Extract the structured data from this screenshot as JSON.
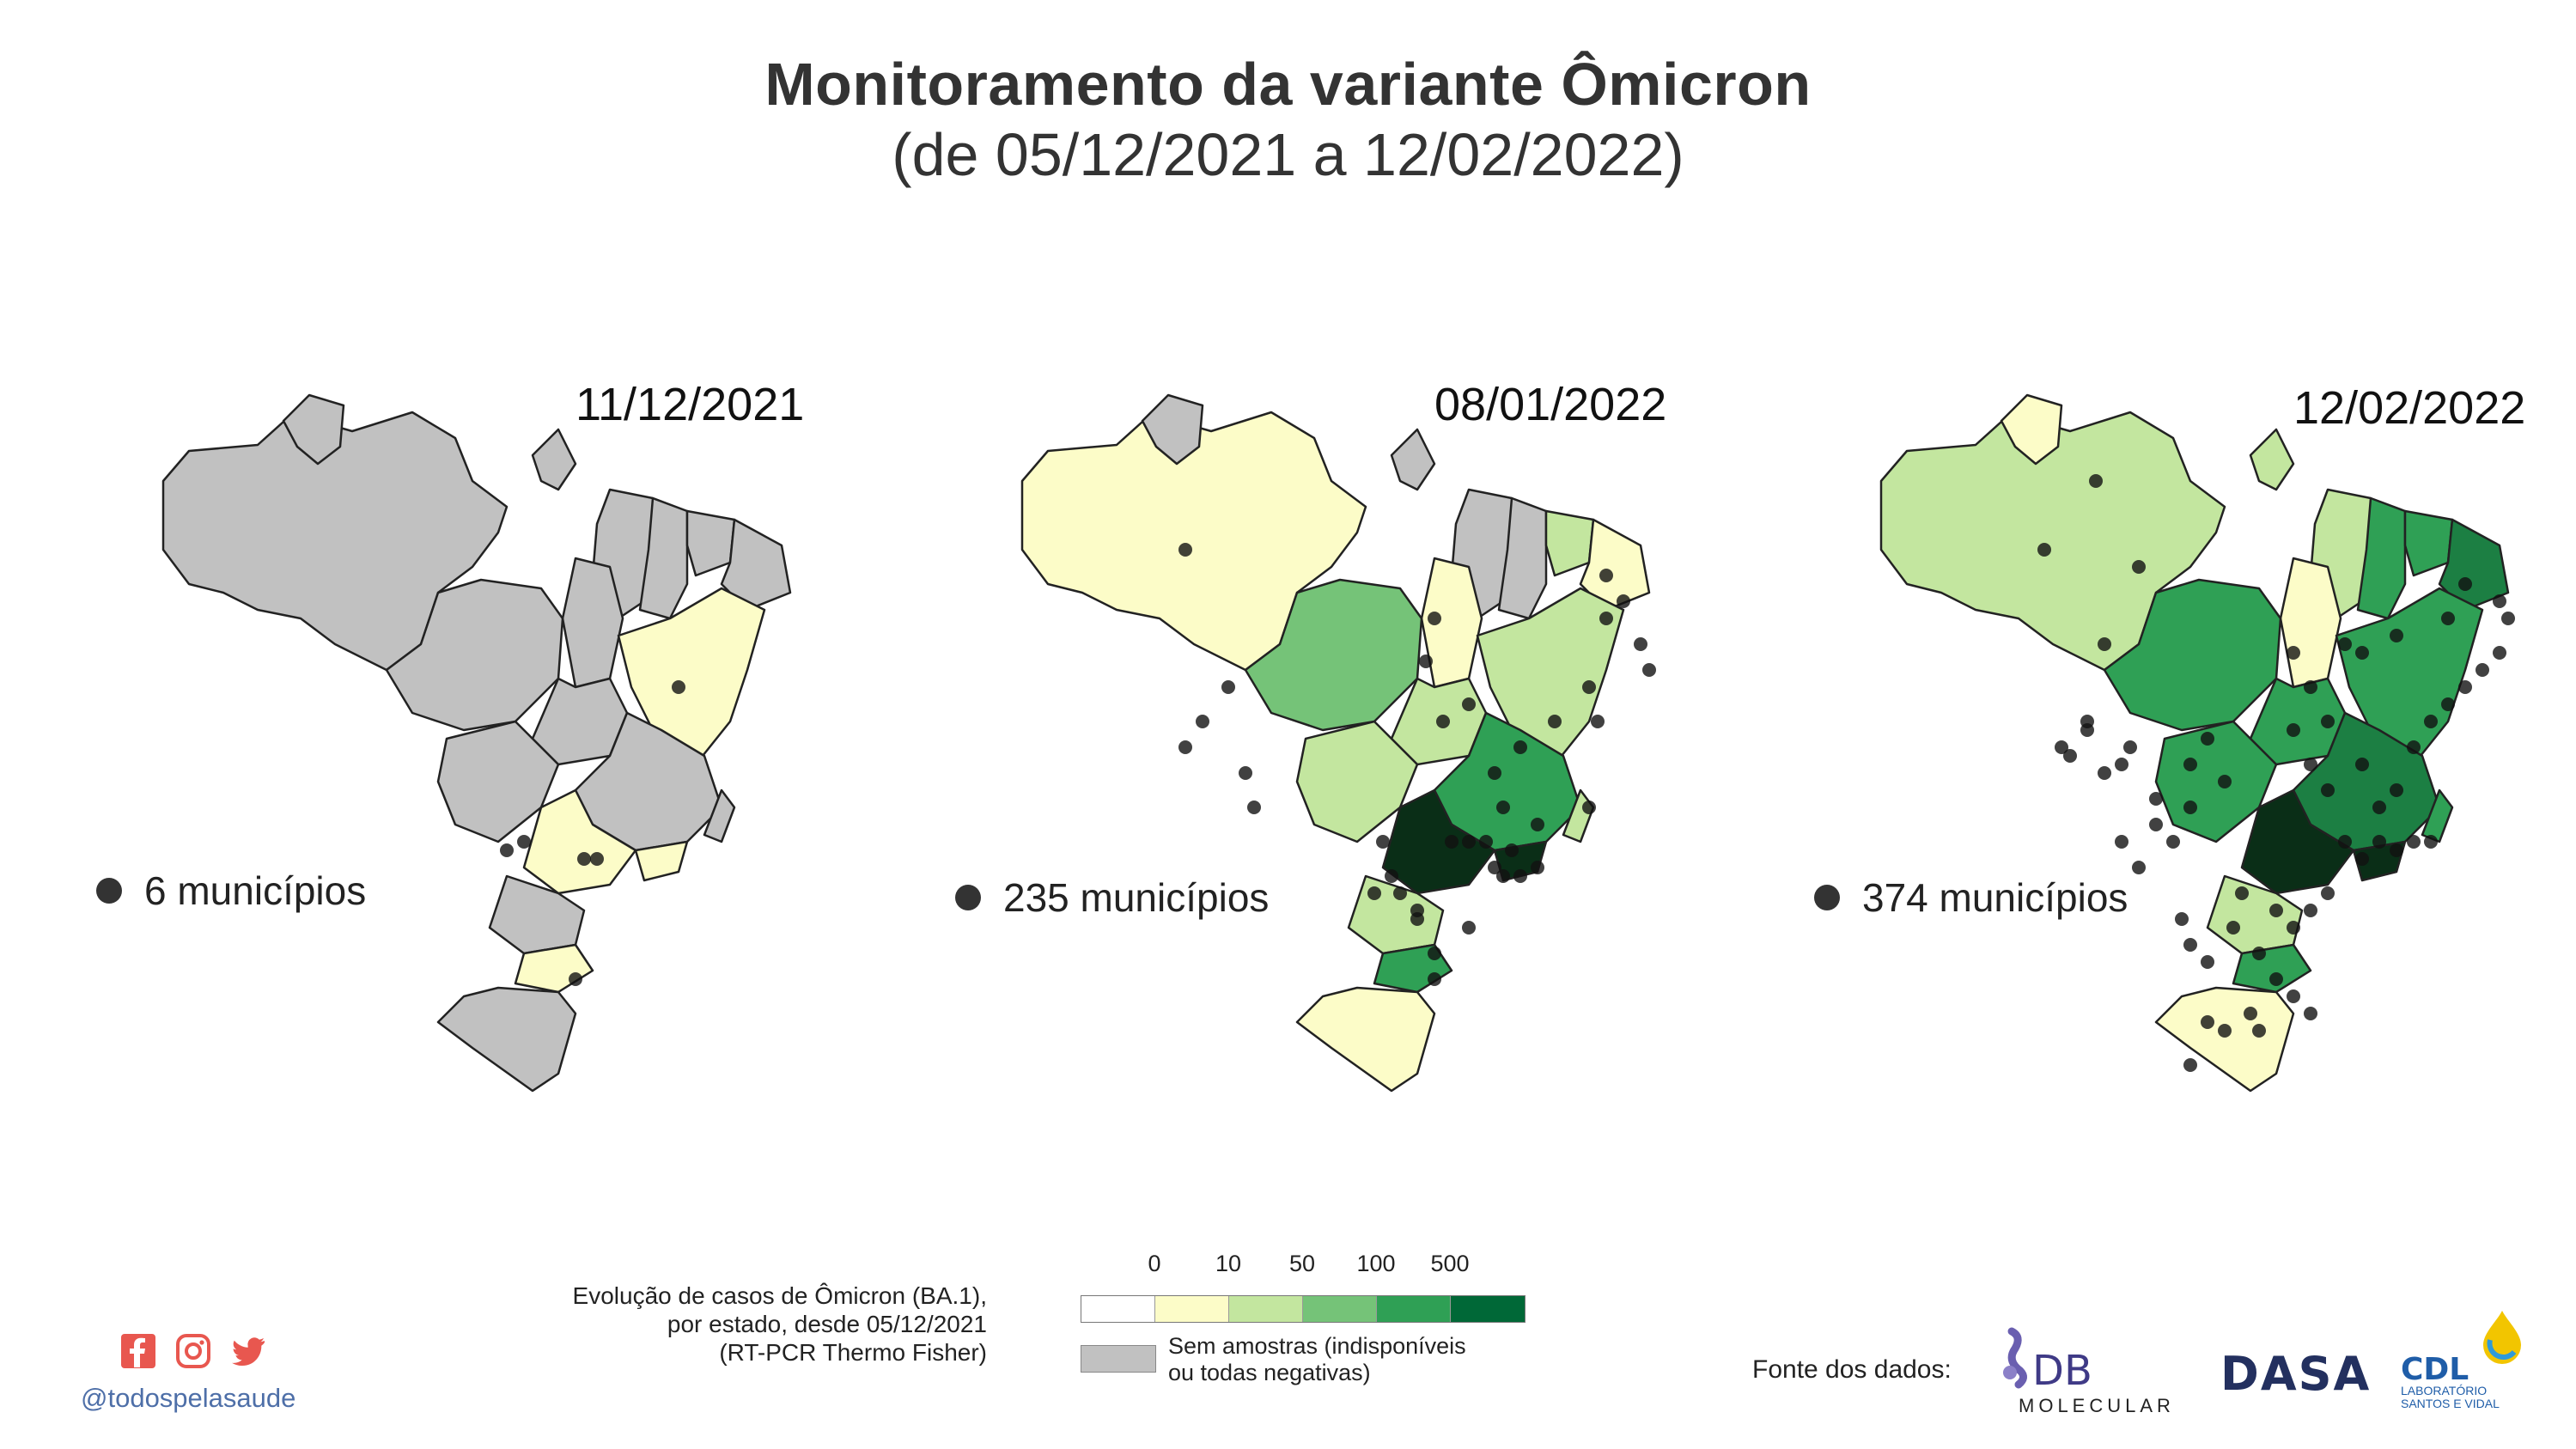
{
  "title": "Monitoramento da variante Ômicron",
  "subtitle": "(de 05/12/2021 a 12/02/2022)",
  "maps": [
    {
      "date": "11/12/2021",
      "municipios_label": "6 municípios",
      "municipios_count": 6,
      "state_colors": {
        "north": "#c1c1c1",
        "amapa": "#c1c1c1",
        "roraima": "#c1c1c1",
        "tocantins": "#c1c1c1",
        "maranhao": "#c1c1c1",
        "piaui": "#c1c1c1",
        "ceara": "#c1c1c1",
        "ne_small": "#c1c1c1",
        "bahia": "#fcfcc8",
        "mato_grosso": "#c1c1c1",
        "goias": "#c1c1c1",
        "minas": "#c1c1c1",
        "ms": "#c1c1c1",
        "sao_paulo": "#fcfcc8",
        "rio": "#fcfcc8",
        "es": "#c1c1c1",
        "parana": "#c1c1c1",
        "sc": "#fcfcc8",
        "rs": "#c1c1c1"
      }
    },
    {
      "date": "08/01/2022",
      "municipios_label": "235 municípios",
      "municipios_count": 235,
      "state_colors": {
        "north": "#fcfcc8",
        "amapa": "#c1c1c1",
        "roraima": "#c1c1c1",
        "tocantins": "#fcfcc8",
        "maranhao": "#c1c1c1",
        "piaui": "#c1c1c1",
        "ceara": "#c3e69f",
        "ne_small": "#fcfcc8",
        "bahia": "#c3e69f",
        "mato_grosso": "#75c378",
        "goias": "#c3e69f",
        "minas": "#2fa055",
        "ms": "#c3e69f",
        "sao_paulo": "#0a2e17",
        "rio": "#0a2e17",
        "es": "#c3e69f",
        "parana": "#c3e69f",
        "sc": "#2fa055",
        "rs": "#fcfcc8"
      }
    },
    {
      "date": "12/02/2022",
      "municipios_label": "374 municípios",
      "municipios_count": 374,
      "state_colors": {
        "north": "#c3e69f",
        "amapa": "#c3e69f",
        "roraima": "#fcfcc8",
        "tocantins": "#fcfcc8",
        "maranhao": "#c3e69f",
        "piaui": "#2fa055",
        "ceara": "#2fa055",
        "ne_small": "#1c7f43",
        "bahia": "#2fa055",
        "mato_grosso": "#2fa055",
        "goias": "#2fa055",
        "minas": "#1c7f43",
        "ms": "#2fa055",
        "sao_paulo": "#0a2e17",
        "rio": "#0a2e17",
        "es": "#2fa055",
        "parana": "#c3e69f",
        "sc": "#2fa055",
        "rs": "#fcfcc8"
      }
    }
  ],
  "legend": {
    "caption_lines": [
      "Evolução de casos de Ômicron (BA.1),",
      "por estado, desde 05/12/2021",
      "(RT-PCR Thermo Fisher)"
    ],
    "ticks": [
      "0",
      "10",
      "50",
      "100",
      "500"
    ],
    "colors": [
      "#ffffff",
      "#fcfcc8",
      "#c3e69f",
      "#75c378",
      "#2fa055",
      "#006837"
    ],
    "na_color": "#c1c1c1",
    "na_lines": [
      "Sem amostras (indisponíveis",
      "ou todas negativas)"
    ]
  },
  "social": {
    "icons": [
      "facebook-icon",
      "instagram-icon",
      "twitter-icon"
    ],
    "handle": "@todospelasaude",
    "icon_color": "#e8574f"
  },
  "sources": {
    "label": "Fonte dos dados:",
    "db_text": "DB",
    "db_sub": "MOLECULAR",
    "dasa": "DASA",
    "cdl": "CDL",
    "cdl_sub1": "LABORATÓRIO",
    "cdl_sub2": "SANTOS E VIDAL"
  }
}
